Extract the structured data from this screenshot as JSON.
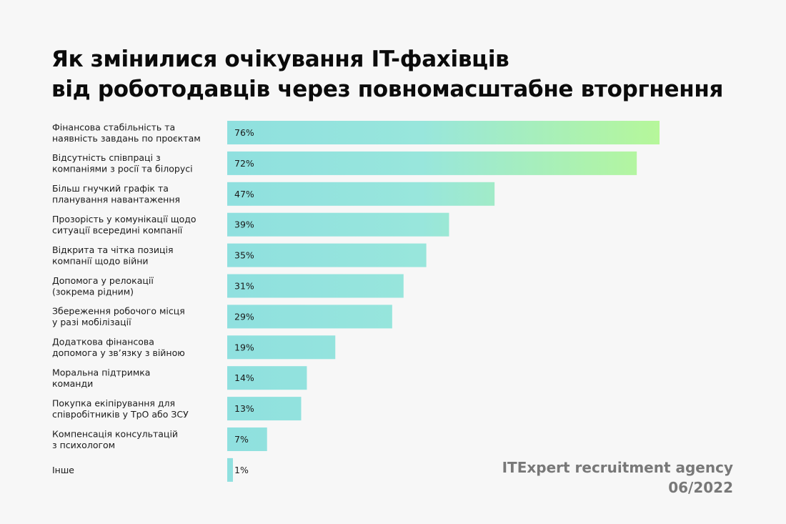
{
  "title": {
    "line1": "Як змінилися очікування IT-фахівців",
    "line2": "від роботодавців через повномасштабне вторгнення"
  },
  "footer": {
    "agency": "ITExpert recruitment agency",
    "date": "06/2022"
  },
  "colors": {
    "bar_start": "#8fe0df",
    "bar_end": "#b6f79a",
    "background": "#f7f7f7"
  },
  "chart_data": {
    "type": "bar",
    "orientation": "horizontal",
    "unit": "%",
    "xlim": [
      0,
      76
    ],
    "categories": [
      [
        "Фінансова стабільність та",
        "наявність завдань по проєктам"
      ],
      [
        "Відсутність співпраці з",
        "компаніями з росії та білорусі"
      ],
      [
        "Більш гнучкий графік та",
        "планування навантаження"
      ],
      [
        "Прозорість у комунікації щодо",
        "ситуації всередині компанії"
      ],
      [
        "Відкрита та чітка позиція",
        "компанії щодо війни"
      ],
      [
        "Допомога у релокації",
        "(зокрема рідним)"
      ],
      [
        "Збереження робочого місця",
        "у разі мобілізації"
      ],
      [
        "Додаткова фінансова",
        "допомога у зв’язку з війною"
      ],
      [
        "Моральна підтримка",
        "команди"
      ],
      [
        "Покупка екіпірування для",
        "співробітників у ТрО або ЗСУ"
      ],
      [
        "Компенсація консультацій",
        "з психологом"
      ],
      [
        "Інше"
      ]
    ],
    "values": [
      76,
      72,
      47,
      39,
      35,
      31,
      29,
      19,
      14,
      13,
      7,
      1
    ],
    "value_labels": [
      "76%",
      "72%",
      "47%",
      "39%",
      "35%",
      "31%",
      "29%",
      "19%",
      "14%",
      "13%",
      "7%",
      "1%"
    ],
    "legend": false,
    "grid": false
  }
}
